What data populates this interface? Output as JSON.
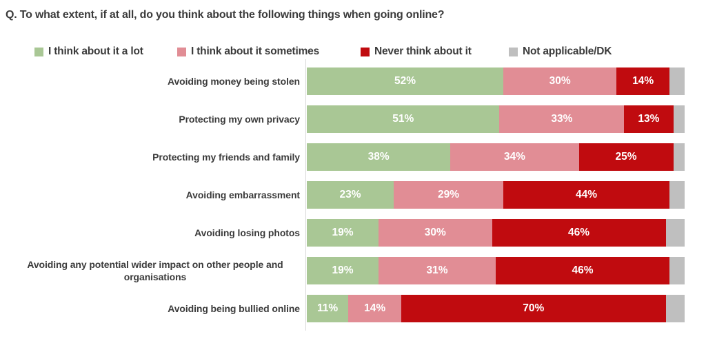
{
  "title": "Q. To what extent, if at all, do you think about the following things when going online?",
  "colors": {
    "a_lot": "#A9C795",
    "sometimes": "#E18D95",
    "never": "#C00B0F",
    "not_applicable": "#BFBFBF",
    "axis_line": "#D9D9D9",
    "text": "#3B3B3B",
    "value_label": "#FFFFFF",
    "background": "#FFFFFF"
  },
  "chart_data": {
    "type": "bar",
    "orientation": "horizontal_stacked",
    "title": "Q. To what extent, if at all, do you think about the following things when going online?",
    "legend_position": "top",
    "grid": false,
    "xlim": [
      0,
      100
    ],
    "value_suffix": "%",
    "categories": [
      "Avoiding money being stolen",
      "Protecting my own privacy",
      "Protecting my friends and family",
      "Avoiding embarrassment",
      "Avoiding losing photos",
      "Avoiding any potential wider impact on other people and organisations",
      "Avoiding being bullied online"
    ],
    "series": [
      {
        "name": "I think about it a lot",
        "color": "#A9C795",
        "show_value_labels": true,
        "values": [
          52,
          51,
          38,
          23,
          19,
          19,
          11
        ]
      },
      {
        "name": "I think about it sometimes",
        "color": "#E18D95",
        "show_value_labels": true,
        "values": [
          30,
          33,
          34,
          29,
          30,
          31,
          14
        ]
      },
      {
        "name": "Never think about it",
        "color": "#C00B0F",
        "show_value_labels": true,
        "values": [
          14,
          13,
          25,
          44,
          46,
          46,
          70
        ]
      },
      {
        "name": "Not applicable/DK",
        "color": "#BFBFBF",
        "show_value_labels": false,
        "values": [
          4,
          3,
          3,
          4,
          5,
          4,
          5
        ]
      }
    ]
  }
}
